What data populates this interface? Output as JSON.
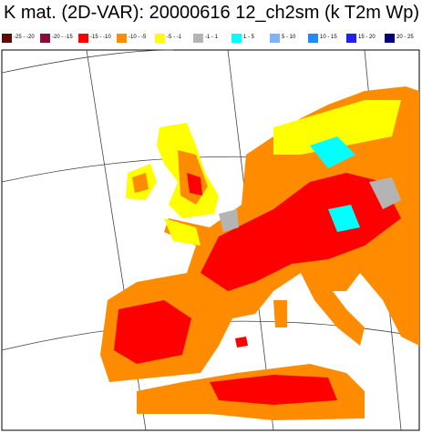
{
  "header": {
    "title": "K mat. (2D-VAR): 20000616 12_ch2sm (k T2m Wp)"
  },
  "legend": {
    "items": [
      {
        "label": "-25 - -20",
        "color": "#5c0a0a"
      },
      {
        "label": "-20 - -15",
        "color": "#8b0a3a"
      },
      {
        "label": "-15 - -10",
        "color": "#ff0000"
      },
      {
        "label": "-10 - -5",
        "color": "#ff8c00"
      },
      {
        "label": "-5 - -1",
        "color": "#ffff00"
      },
      {
        "label": "-1 - 1",
        "color": "#b4b4b4"
      },
      {
        "label": "1 - 5",
        "color": "#00ffff"
      },
      {
        "label": "5 - 10",
        "color": "#7fb2ff"
      },
      {
        "label": "10 - 15",
        "color": "#1e8cff"
      },
      {
        "label": "15 - 20",
        "color": "#2020ff"
      },
      {
        "label": "20 - 25",
        "color": "#000080"
      }
    ]
  }
}
